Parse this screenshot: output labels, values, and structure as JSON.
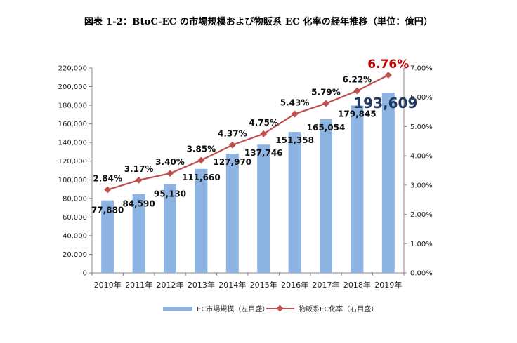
{
  "title": "図表 1-2：BtoC-EC の市場規模および物販系 EC 化率の経年推移（単位：億円）",
  "chart_data": {
    "type": "bar",
    "categories": [
      "2010年",
      "2011年",
      "2012年",
      "2013年",
      "2014年",
      "2015年",
      "2016年",
      "2017年",
      "2018年",
      "2019年"
    ],
    "series": [
      {
        "name": "EC市場規模（左目盛）",
        "type": "bar",
        "axis": "left",
        "values": [
          77880,
          84590,
          95130,
          111660,
          127970,
          137746,
          151358,
          165054,
          179845,
          193609
        ],
        "labels": [
          "77,880",
          "84,590",
          "95,130",
          "111,660",
          "127,970",
          "137,746",
          "151,358",
          "165,054",
          "179,845",
          "193,609"
        ],
        "color": "#8db3e2"
      },
      {
        "name": "物販系EC化率（右目盛）",
        "type": "line",
        "axis": "right",
        "values": [
          2.84,
          3.17,
          3.4,
          3.85,
          4.37,
          4.75,
          5.43,
          5.79,
          6.22,
          6.76
        ],
        "labels": [
          "2.84%",
          "3.17%",
          "3.40%",
          "3.85%",
          "4.37%",
          "4.75%",
          "5.43%",
          "5.79%",
          "6.22%",
          "6.76%"
        ],
        "color": "#c0504d"
      }
    ],
    "y_left": {
      "ylim": [
        0,
        220000
      ],
      "ticks": [
        "0",
        "20,000",
        "40,000",
        "60,000",
        "80,000",
        "100,000",
        "120,000",
        "140,000",
        "160,000",
        "180,000",
        "200,000",
        "220,000"
      ]
    },
    "y_right": {
      "ylim": [
        0,
        7
      ],
      "ticks": [
        "0.00%",
        "1.00%",
        "2.00%",
        "3.00%",
        "4.00%",
        "5.00%",
        "6.00%",
        "7.00%"
      ]
    },
    "highlight": {
      "last_bar_label_color": "#1f3864",
      "last_line_label_color": "#c00000"
    },
    "grid": false,
    "legend_position": "bottom"
  }
}
